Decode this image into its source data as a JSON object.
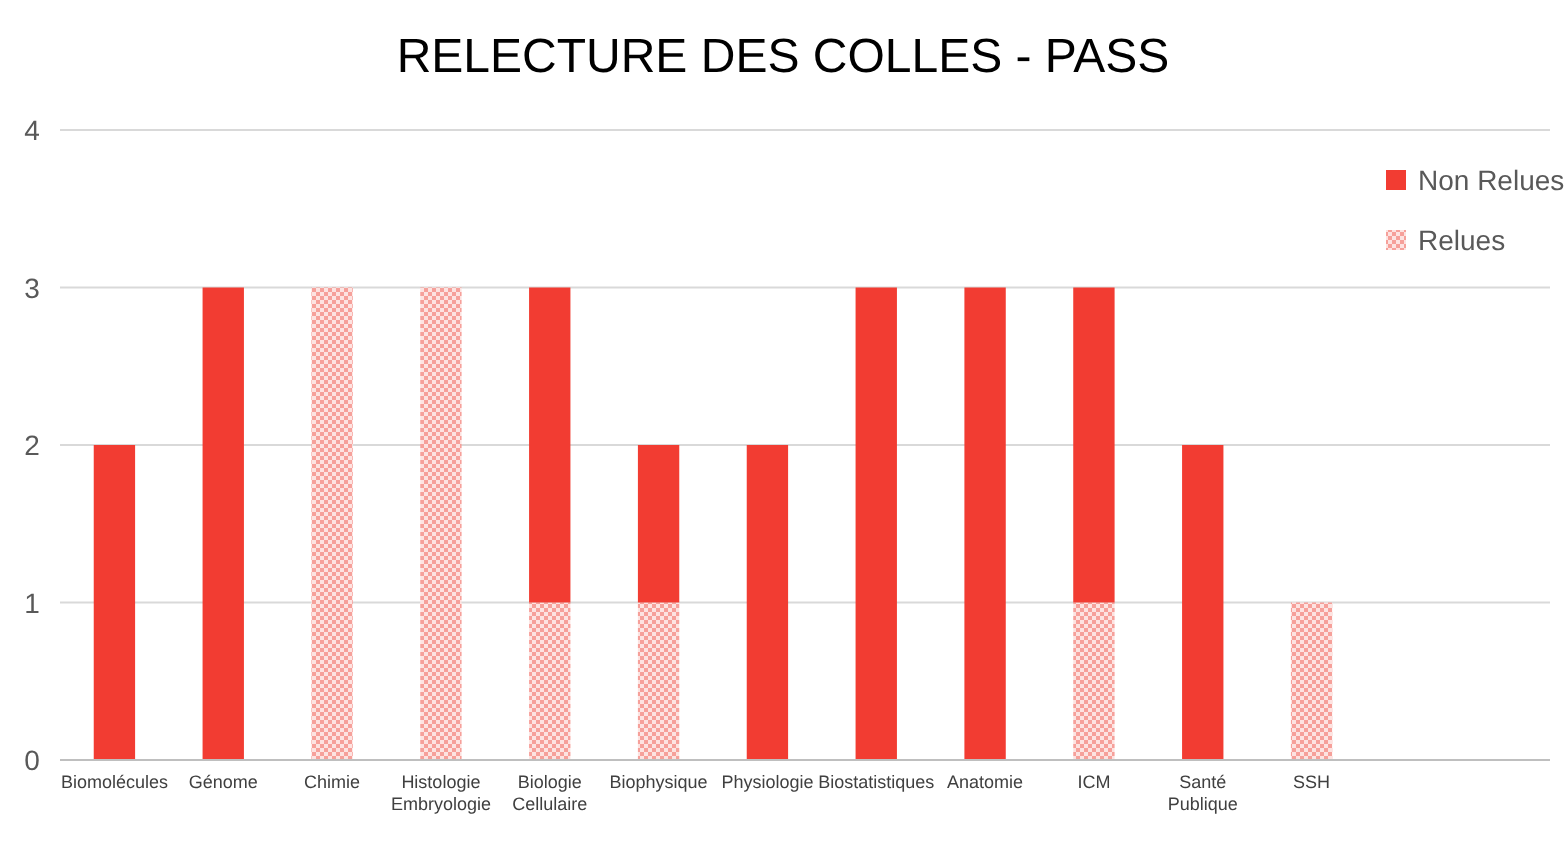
{
  "chart_data": {
    "type": "bar",
    "title": "RELECTURE DES COLLES - PASS",
    "stacked": true,
    "categories": [
      "Biomolécules",
      "Génome",
      "Chimie",
      "Histologie Embryologie",
      "Biologie Cellulaire",
      "Biophysique",
      "Physiologie",
      "Biostatistiques",
      "Anatomie",
      "ICM",
      "Santé Publique",
      "SSH"
    ],
    "series": [
      {
        "name": "Relues",
        "color": "#f6a09a",
        "values": [
          0,
          0,
          3,
          3,
          1,
          1,
          0,
          0,
          0,
          1,
          0,
          1
        ]
      },
      {
        "name": "Non Relues",
        "color": "#f23c32",
        "values": [
          2,
          3,
          0,
          0,
          2,
          1,
          2,
          3,
          3,
          2,
          2,
          0
        ]
      }
    ],
    "ylim": [
      0,
      4
    ],
    "yticks": [
      0,
      1,
      2,
      3,
      4
    ],
    "grid": "y",
    "legend": "top right"
  }
}
